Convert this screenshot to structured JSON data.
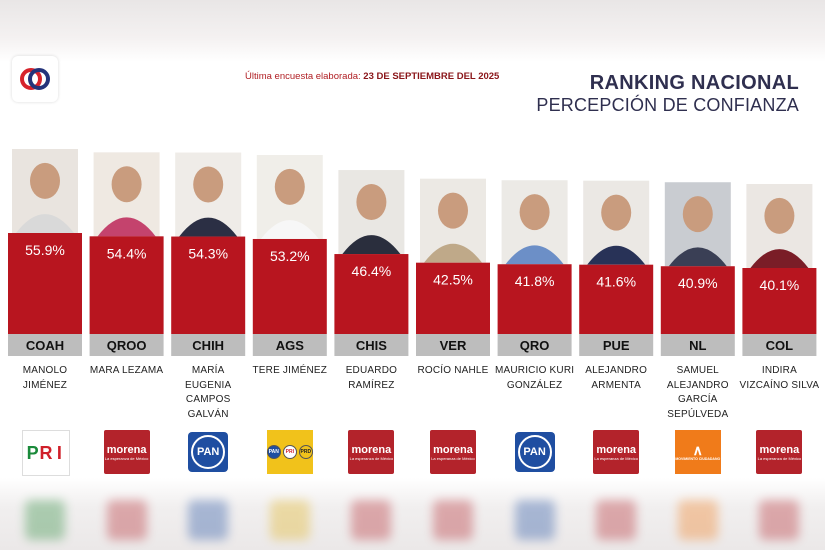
{
  "header": {
    "subtitle_prefix": "Última encuesta elaborada:",
    "subtitle_date": "23 DE SEPTIEMBRE DEL 2025",
    "title_line1": "RANKING NACIONAL",
    "title_line2": "PERCEPCIÓN DE CONFIANZA"
  },
  "colors": {
    "bar": "#b8151f",
    "state_band": "#bdbdbd",
    "title": "#2f2f4f",
    "subtitle": "#b01e23",
    "morena": "#b3232b",
    "pan": "#1f4ea1",
    "mc": "#f07b1a"
  },
  "chart_data": {
    "type": "bar",
    "categories": [
      "COAH",
      "QROO",
      "CHIH",
      "AGS",
      "CHIS",
      "VER",
      "QRO",
      "PUE",
      "NL",
      "COL"
    ],
    "values": [
      55.9,
      54.4,
      54.3,
      53.2,
      46.4,
      42.5,
      41.8,
      41.6,
      40.9,
      40.1
    ],
    "value_labels": [
      "55.9%",
      "54.4%",
      "54.3%",
      "53.2%",
      "46.4%",
      "42.5%",
      "41.8%",
      "41.6%",
      "40.9%",
      "40.1%"
    ],
    "title": "RANKING NACIONAL",
    "subtitle": "PERCEPCIÓN DE CONFIANZA",
    "unit": "%",
    "grid": false,
    "legend": "none"
  },
  "candidates": [
    {
      "name_lines": [
        "MANOLO",
        "JIMÉNEZ"
      ],
      "party": "PRI",
      "portrait": "man-dark-suit"
    },
    {
      "name_lines": [
        "MARA LEZAMA"
      ],
      "party": "morena",
      "portrait": "woman-floral"
    },
    {
      "name_lines": [
        "MARÍA EUGENIA",
        "CAMPOS",
        "GALVÁN"
      ],
      "party": "PAN",
      "portrait": "woman-dark-jacket"
    },
    {
      "name_lines": [
        "TERE JIMÉNEZ"
      ],
      "party": "PAN-PRI-PRD",
      "portrait": "woman-white-top"
    },
    {
      "name_lines": [
        "EDUARDO",
        "RAMÍREZ"
      ],
      "party": "morena",
      "portrait": "man-suit-tie"
    },
    {
      "name_lines": [
        "ROCÍO NAHLE"
      ],
      "party": "morena",
      "portrait": "woman-beige-jacket"
    },
    {
      "name_lines": [
        "MAURICIO KURI",
        "GONZÁLEZ"
      ],
      "party": "PAN",
      "portrait": "man-blue-shirt"
    },
    {
      "name_lines": [
        "ALEJANDRO",
        "ARMENTA"
      ],
      "party": "morena",
      "portrait": "man-navy-suit"
    },
    {
      "name_lines": [
        "SAMUEL",
        "ALEJANDRO",
        "GARCÍA",
        "SEPÚLVEDA"
      ],
      "party": "MC",
      "portrait": "man-orange-tie"
    },
    {
      "name_lines": [
        "INDIRA",
        "VIZCAÍNO SILVA"
      ],
      "party": "morena",
      "portrait": "woman-dark-hair"
    }
  ],
  "party_logos": {
    "PRI": {
      "text": "PRI"
    },
    "morena": {
      "text": "morena",
      "tagline": "La esperanza de México"
    },
    "PAN": {
      "text": "PAN"
    },
    "PAN-PRI-PRD": {
      "text": [
        "PAN",
        "PRI",
        "PRD"
      ]
    },
    "MC": {
      "text": "MOVIMIENTO CIUDADANO"
    }
  },
  "icons": {
    "brand_logo": "brand-logo-icon",
    "portrait": "portrait-icon"
  }
}
